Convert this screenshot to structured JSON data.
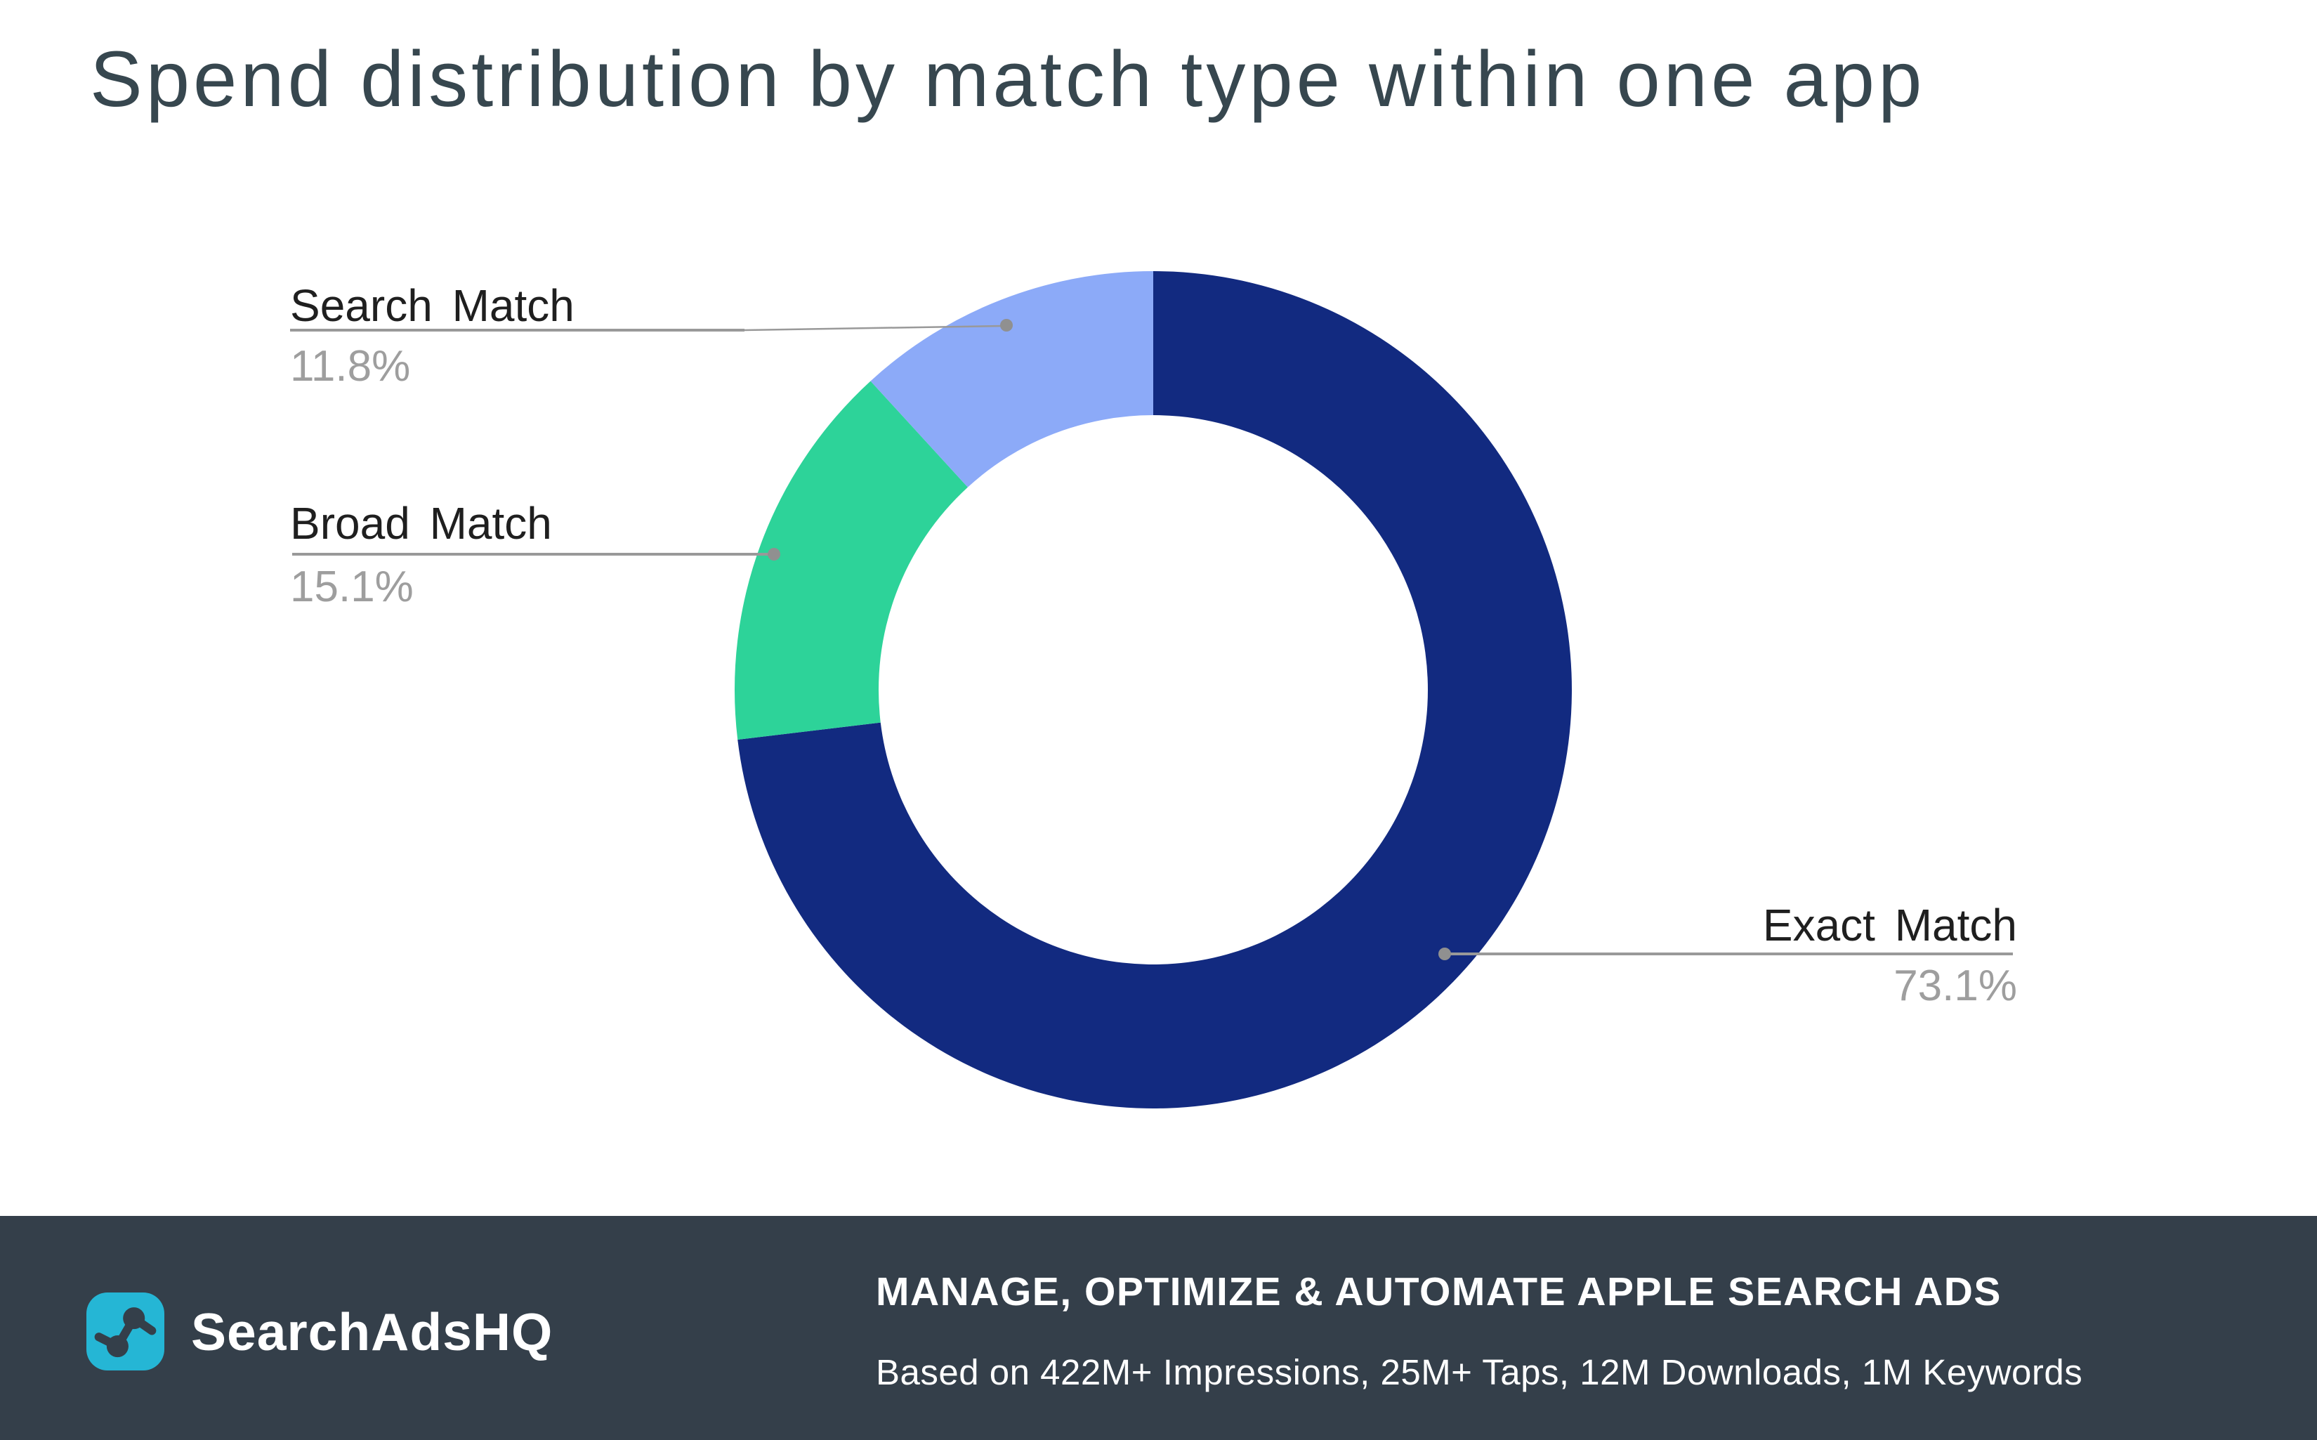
{
  "title": "Spend distribution by match type within one app",
  "chart_data": {
    "type": "pie",
    "variant": "donut",
    "title": "Spend distribution by match type within one app",
    "start_angle_deg": 0,
    "direction": "clockwise",
    "categories": [
      "Exact Match",
      "Broad Match",
      "Search Match"
    ],
    "values": [
      73.1,
      15.1,
      11.8
    ],
    "unit": "%",
    "colors": [
      "#122A80",
      "#2DD399",
      "#8CAAF8"
    ],
    "legend": "none",
    "labels_style": "outside-callouts"
  },
  "callouts": {
    "search": {
      "label": "Search Match",
      "value": "11.8%"
    },
    "broad": {
      "label": "Broad Match",
      "value": "15.1%"
    },
    "exact": {
      "label": "Exact Match",
      "value": "73.1%"
    }
  },
  "footer": {
    "brand": "SearchAdsHQ",
    "headline": "MANAGE, OPTIMIZE & AUTOMATE APPLE SEARCH ADS",
    "subline": "Based on 422M+ Impressions, 25M+ Taps, 12M Downloads, 1M Keywords"
  },
  "colors": {
    "title_text": "#37474F",
    "slice_exact": "#122A80",
    "slice_broad": "#2DD399",
    "slice_search": "#8CAAF8",
    "callout_label": "#1F1F1F",
    "callout_value": "#9E9E9E",
    "connector": "#999999",
    "footer_background": "#343F4A",
    "footer_text": "#FFFFFF",
    "logo_background": "#25B6D5"
  }
}
